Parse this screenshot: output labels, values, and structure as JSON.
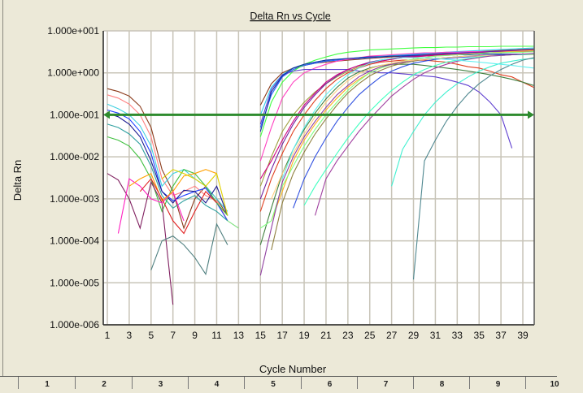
{
  "chart_data": {
    "type": "line",
    "title": "Delta Rn vs Cycle",
    "xlabel": "Cycle Number",
    "ylabel": "Delta Rn",
    "yscale": "log",
    "ylim": [
      1e-06,
      10
    ],
    "xlim": [
      0.6,
      40
    ],
    "grid": true,
    "y_tick_labels": [
      "1.000e+001",
      "1.000e+000",
      "1.000e-001",
      "1.000e-002",
      "1.000e-003",
      "1.000e-004",
      "1.000e-005",
      "1.000e-006"
    ],
    "y_tick_values": [
      10,
      1,
      0.1,
      0.01,
      0.001,
      0.0001,
      1e-05,
      1e-06
    ],
    "x_tick_labels": [
      "1",
      "3",
      "5",
      "7",
      "9",
      "11",
      "13",
      "15",
      "17",
      "19",
      "21",
      "23",
      "25",
      "27",
      "29",
      "31",
      "33",
      "35",
      "37",
      "39"
    ],
    "threshold": {
      "value": 0.1,
      "color": "#2e8b2e"
    },
    "series": [
      {
        "color": "#8b3a1a",
        "start_cycle": 1,
        "values": [
          0.42,
          0.36,
          0.28,
          0.16,
          0.05,
          0.005,
          0.0015,
          0.0002,
          0.001,
          0.002,
          0.001,
          0.0004
        ]
      },
      {
        "color": "#ff8080",
        "start_cycle": 1,
        "values": [
          0.3,
          0.25,
          0.18,
          0.1,
          0.03,
          0.003,
          0.0012,
          0.0015,
          0.002,
          0.0012,
          0.0009,
          0.0003
        ]
      },
      {
        "color": "#40d0e0",
        "start_cycle": 1,
        "values": [
          0.18,
          0.14,
          0.1,
          0.055,
          0.018,
          0.002,
          0.004,
          0.005,
          0.003,
          0.002,
          0.001,
          0.0005
        ]
      },
      {
        "color": "#2040ff",
        "start_cycle": 1,
        "values": [
          0.13,
          0.11,
          0.08,
          0.04,
          0.012,
          0.0015,
          0.0009,
          0.0012,
          0.0015,
          0.0018,
          0.0008,
          0.0003
        ]
      },
      {
        "color": "#1a1a90",
        "start_cycle": 1,
        "values": [
          0.11,
          0.09,
          0.06,
          0.03,
          0.008,
          0.0015,
          0.0008,
          0.0016,
          0.0015,
          0.0008,
          0.002,
          0.0004
        ]
      },
      {
        "color": "#30a0a0",
        "start_cycle": 1,
        "values": [
          0.06,
          0.05,
          0.035,
          0.02,
          0.006,
          0.0012,
          0.0006,
          0.0009,
          0.0012,
          0.0007,
          0.0005,
          0.0003
        ]
      },
      {
        "color": "#40c040",
        "start_cycle": 1,
        "values": [
          0.03,
          0.025,
          0.018,
          0.009,
          0.003,
          0.0005,
          0.002,
          0.005,
          0.004,
          0.002,
          0.0008,
          0.0004
        ]
      },
      {
        "color": "#802060",
        "start_cycle": 1,
        "values": [
          0.004,
          0.0028,
          0.001,
          0.0002,
          0.0025,
          0.0008,
          3e-06
        ]
      },
      {
        "color": "#ff20c0",
        "start_cycle": 2,
        "values": [
          0.00015,
          0.003,
          0.002,
          0.001,
          0.0008,
          0.0015,
          0.0003
        ]
      },
      {
        "color": "#ffa000",
        "start_cycle": 3,
        "values": [
          0.002,
          0.003,
          0.004,
          0.0009,
          0.0015,
          0.0035,
          0.004,
          0.005,
          0.004
        ]
      },
      {
        "color": "#e02020",
        "start_cycle": 4,
        "values": [
          0.0015,
          0.003,
          0.001,
          0.0003,
          0.00015,
          0.0005,
          0.0015,
          0.0008
        ]
      },
      {
        "color": "#508080",
        "start_cycle": 5,
        "values": [
          2e-05,
          0.0001,
          0.00013,
          8e-05,
          4e-05,
          1.6e-05,
          0.00025,
          8e-05
        ]
      },
      {
        "color": "#e0d000",
        "start_cycle": 6,
        "values": [
          0.003,
          0.005,
          0.004,
          0.003,
          0.002,
          0.004,
          0.0004
        ]
      },
      {
        "color": "#80e080",
        "start_cycle": 12,
        "values": [
          0.0003,
          0.0002
        ]
      },
      {
        "color": "#8b3a1a",
        "start_cycle": 15,
        "values": [
          0.17,
          0.55,
          1.0,
          1.3,
          1.5,
          1.7,
          1.8,
          1.9,
          2.0,
          2.1,
          2.2,
          2.3,
          2.4,
          2.5,
          2.6,
          2.7,
          2.8,
          2.9,
          3.0,
          3.1,
          3.2,
          3.3,
          3.4,
          3.5,
          3.6,
          3.7
        ]
      },
      {
        "color": "#2060ff",
        "start_cycle": 15,
        "values": [
          0.05,
          0.3,
          0.8,
          1.2,
          1.5,
          1.7,
          1.9,
          2.0,
          2.1,
          2.2,
          2.3,
          2.4,
          2.5,
          2.6,
          2.7,
          2.8,
          2.9,
          3.0,
          3.0,
          3.1,
          3.1,
          3.2,
          3.2,
          3.3,
          3.3,
          3.4
        ]
      },
      {
        "color": "#30d0f0",
        "start_cycle": 15,
        "values": [
          0.1,
          0.45,
          0.9,
          1.3,
          1.6,
          1.8,
          2.0,
          2.1,
          2.2,
          2.3,
          2.4,
          2.5,
          2.6,
          2.7,
          2.8,
          2.9,
          3.0,
          3.1,
          3.2,
          3.3,
          3.4,
          3.5,
          3.6,
          3.7,
          3.8,
          3.9
        ]
      },
      {
        "color": "#40ff40",
        "start_cycle": 15,
        "values": [
          0.03,
          0.2,
          0.6,
          1.1,
          1.6,
          2.0,
          2.4,
          2.8,
          3.1,
          3.3,
          3.5,
          3.6,
          3.7,
          3.8,
          3.9,
          4.0,
          4.0,
          4.1,
          4.1,
          4.2,
          4.2,
          4.2,
          4.3,
          4.3,
          4.3,
          4.3
        ]
      },
      {
        "color": "#ff40c0",
        "start_cycle": 15,
        "values": [
          0.008,
          0.05,
          0.25,
          0.6,
          1.0,
          1.3,
          1.6,
          1.9,
          2.1,
          2.3,
          2.5,
          2.6,
          2.7,
          2.8,
          2.9,
          3.0,
          3.0,
          3.1,
          3.1,
          3.2,
          3.2,
          3.2,
          3.3,
          3.3,
          3.3,
          3.3
        ]
      },
      {
        "color": "#a0a040",
        "start_cycle": 15,
        "values": [
          0.002,
          0.01,
          0.04,
          0.1,
          0.2,
          0.35,
          0.55,
          0.8,
          1.1,
          1.4,
          1.7,
          1.9,
          2.1,
          2.3,
          2.4,
          2.5,
          2.6,
          2.7,
          2.8,
          2.9,
          3.0,
          3.0,
          3.1,
          3.1,
          3.2,
          3.2
        ]
      },
      {
        "color": "#6040d0",
        "start_cycle": 15,
        "values": [
          0.06,
          0.4,
          0.9,
          1.1,
          1.2,
          1.2,
          1.2,
          1.2,
          1.2,
          1.1,
          1.1,
          1.0,
          1.0,
          0.95,
          0.9,
          0.85,
          0.8,
          0.7,
          0.6,
          0.5,
          0.35,
          0.2,
          0.1,
          0.016
        ]
      },
      {
        "color": "#1030a0",
        "start_cycle": 15,
        "values": [
          0.04,
          0.35,
          0.85,
          1.3,
          1.6,
          1.8,
          2.0,
          2.1,
          2.2,
          2.3,
          2.4,
          2.4,
          2.5,
          2.5,
          2.6,
          2.6,
          2.6,
          2.7,
          2.7,
          2.7,
          2.8,
          2.8,
          2.8,
          2.8,
          2.8,
          2.8
        ]
      },
      {
        "color": "#e04020",
        "start_cycle": 15,
        "values": [
          0.0005,
          0.003,
          0.012,
          0.04,
          0.1,
          0.22,
          0.42,
          0.7,
          1.0,
          1.3,
          1.6,
          1.8,
          1.9,
          2.0,
          2.0,
          2.0,
          1.9,
          1.8,
          1.6,
          1.4,
          1.3,
          1.1,
          0.9,
          0.8,
          0.6,
          0.45
        ]
      },
      {
        "color": "#7020a0",
        "start_cycle": 15,
        "values": [
          0.001,
          0.005,
          0.02,
          0.06,
          0.15,
          0.3,
          0.55,
          0.85,
          1.2,
          1.5,
          1.8,
          2.0,
          2.2,
          2.4,
          2.5,
          2.6,
          2.7,
          2.8,
          2.9,
          3.0,
          3.1,
          3.2,
          3.3,
          3.4,
          3.5,
          3.6
        ]
      },
      {
        "color": "#d00080",
        "start_cycle": 15,
        "values": [
          0.003,
          0.008,
          0.025,
          0.07,
          0.17,
          0.33,
          0.6,
          0.9,
          1.2,
          1.5,
          1.7,
          1.9,
          2.1,
          2.3,
          2.4,
          2.5,
          2.6,
          2.7,
          2.8,
          2.9,
          3.0,
          3.0,
          3.1,
          3.1,
          3.2,
          3.2
        ]
      },
      {
        "color": "#408040",
        "start_cycle": 15,
        "values": [
          8e-05,
          0.0006,
          0.004,
          0.015,
          0.045,
          0.11,
          0.24,
          0.45,
          0.75,
          1.05,
          1.3,
          1.5,
          1.6,
          1.6,
          1.6,
          1.5,
          1.4,
          1.3,
          1.2,
          1.1,
          1.0,
          0.9,
          0.8,
          0.7,
          0.6,
          0.5
        ]
      },
      {
        "color": "#ffb020",
        "start_cycle": 16,
        "values": [
          0.0003,
          0.0015,
          0.008,
          0.025,
          0.06,
          0.13,
          0.25,
          0.45,
          0.7,
          1.0,
          1.3,
          1.6,
          1.9,
          2.1,
          2.3,
          2.5,
          2.6,
          2.7,
          2.8,
          2.9,
          3.0,
          3.1,
          3.2,
          3.3,
          3.4
        ]
      },
      {
        "color": "#80ff80",
        "start_cycle": 15,
        "values": [
          0.0002,
          0.0003,
          0.002,
          0.006,
          0.018,
          0.045,
          0.1,
          0.2,
          0.38,
          0.65,
          1.0,
          1.3,
          1.6,
          1.9,
          2.1,
          2.3,
          2.5,
          2.6,
          2.7,
          2.8,
          2.9,
          3.0,
          3.0,
          3.1,
          3.1,
          3.2
        ]
      },
      {
        "color": "#908040",
        "start_cycle": 16,
        "values": [
          6e-05,
          0.0008,
          0.004,
          0.013,
          0.035,
          0.08,
          0.17,
          0.33,
          0.55,
          0.85,
          1.15,
          1.45,
          1.7,
          1.9,
          2.1,
          2.2,
          2.3,
          2.4,
          2.5,
          2.5,
          2.6,
          2.6,
          2.7,
          2.7,
          2.7
        ]
      },
      {
        "color": "#9040a0",
        "start_cycle": 15,
        "values": [
          1.5e-05,
          0.0002,
          0.0025,
          0.01,
          0.03,
          0.07,
          0.15,
          0.3,
          0.5,
          0.8,
          1.1,
          1.4,
          1.6,
          1.8,
          2.0,
          2.1,
          2.2,
          2.3,
          2.4,
          2.5,
          2.6,
          2.6,
          2.7,
          2.7,
          2.8,
          2.8
        ]
      },
      {
        "color": "#3050e0",
        "start_cycle": 18,
        "values": [
          0.0006,
          0.003,
          0.01,
          0.028,
          0.07,
          0.15,
          0.3,
          0.5,
          0.8,
          1.1,
          1.4,
          1.7,
          1.9,
          2.1,
          2.2,
          2.3,
          2.4,
          2.5,
          2.6,
          2.7,
          2.7,
          2.8,
          2.8
        ]
      },
      {
        "color": "#ffd080",
        "start_cycle": 16,
        "values": [
          0.001,
          0.004,
          0.012,
          0.035,
          0.09,
          0.2,
          0.38,
          0.65,
          0.95,
          1.25,
          1.5,
          1.7,
          1.9,
          2.0,
          2.1,
          2.2,
          2.3,
          2.4,
          2.5,
          2.5,
          2.6,
          2.6,
          2.7,
          2.7,
          2.7
        ]
      },
      {
        "color": "#40ffc0",
        "start_cycle": 19,
        "values": [
          0.0007,
          0.002,
          0.005,
          0.012,
          0.028,
          0.06,
          0.12,
          0.22,
          0.38,
          0.6,
          0.9,
          1.2,
          1.5,
          1.8,
          2.0,
          2.2,
          2.4,
          2.5,
          2.6,
          2.7,
          2.7,
          2.8
        ]
      },
      {
        "color": "#a040a0",
        "start_cycle": 20,
        "values": [
          0.0004,
          0.003,
          0.008,
          0.018,
          0.04,
          0.08,
          0.15,
          0.28,
          0.45,
          0.7,
          1.0,
          1.3,
          1.6,
          1.9,
          2.1,
          2.3,
          2.5,
          2.6,
          2.7,
          2.8,
          2.9
        ]
      },
      {
        "color": "#40f0d0",
        "start_cycle": 27,
        "values": [
          0.002,
          0.015,
          0.04,
          0.1,
          0.2,
          0.35,
          0.55,
          0.8,
          1.1,
          1.4,
          1.7,
          1.9,
          2.1,
          2.2
        ]
      },
      {
        "color": "#508890",
        "start_cycle": 29,
        "values": [
          1.2e-05,
          0.008,
          0.025,
          0.07,
          0.16,
          0.32,
          0.55,
          0.85,
          1.2,
          1.6,
          2.0,
          2.3
        ]
      },
      {
        "color": "#60f0f0",
        "start_cycle": 17,
        "values": [
          0.003,
          0.015,
          0.05,
          0.13,
          0.3,
          0.55,
          0.9,
          1.3,
          1.7,
          2.0,
          2.2,
          2.3,
          2.3,
          2.3,
          2.2,
          2.1,
          2.0,
          1.9,
          1.8,
          1.7,
          1.6,
          1.5,
          1.4,
          1.3
        ]
      }
    ]
  },
  "table_header": {
    "columns": [
      "1",
      "2",
      "3",
      "4",
      "5",
      "6",
      "7",
      "8",
      "9",
      "10"
    ]
  }
}
